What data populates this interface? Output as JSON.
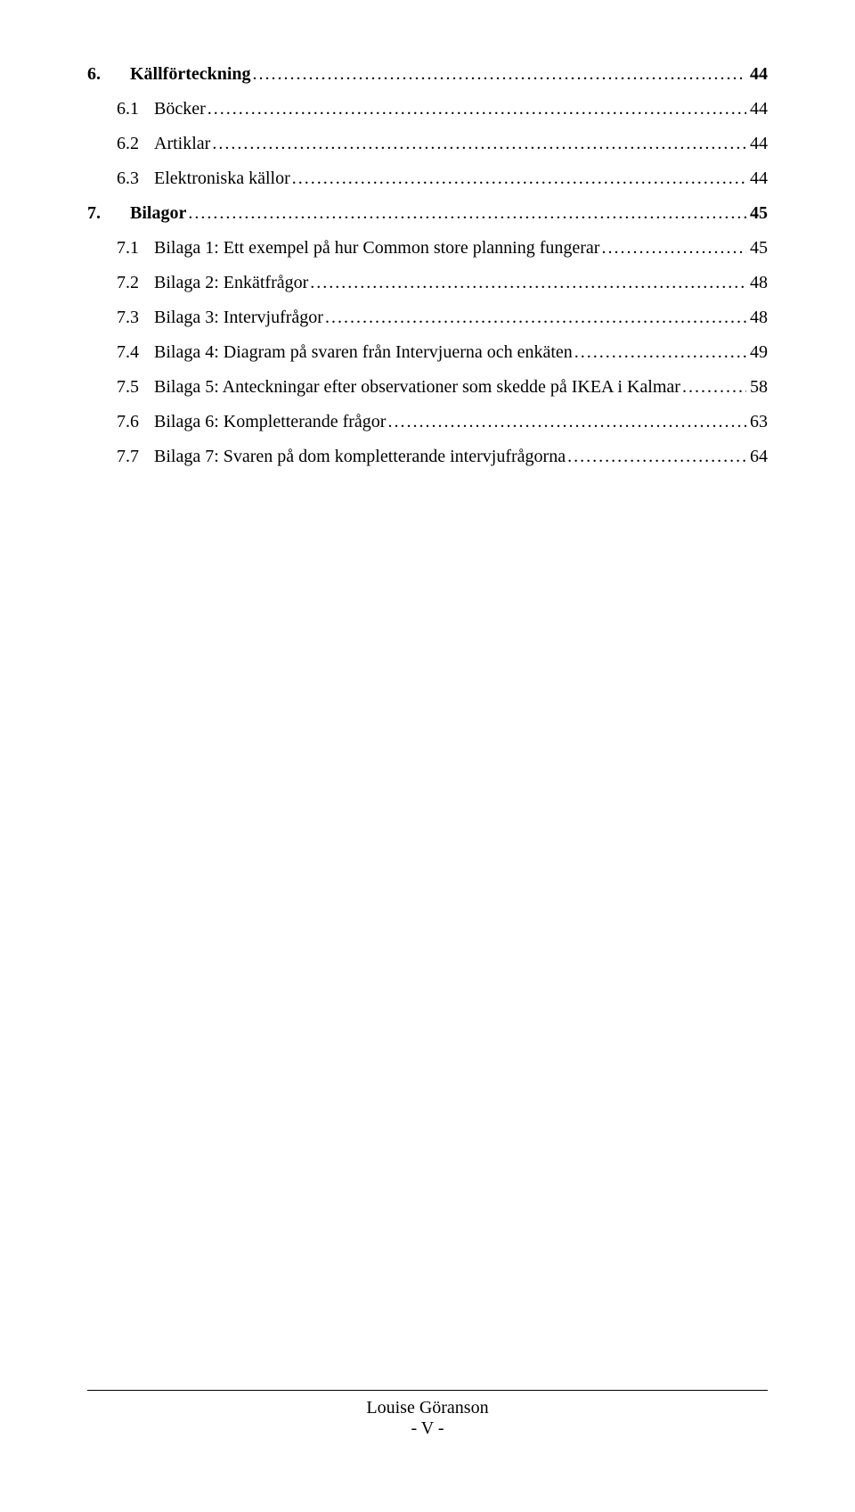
{
  "toc": [
    {
      "level": 1,
      "num": "6.",
      "title": "Källförteckning",
      "page": "44"
    },
    {
      "level": 2,
      "num": "6.1",
      "title": "Böcker",
      "page": "44"
    },
    {
      "level": 2,
      "num": "6.2",
      "title": "Artiklar",
      "page": "44"
    },
    {
      "level": 2,
      "num": "6.3",
      "title": "Elektroniska källor",
      "page": "44"
    },
    {
      "level": 1,
      "num": "7.",
      "title": "Bilagor",
      "page": "45"
    },
    {
      "level": 2,
      "num": "7.1",
      "title": "Bilaga 1: Ett exempel på hur Common store planning fungerar",
      "page": "45"
    },
    {
      "level": 2,
      "num": "7.2",
      "title": "Bilaga 2: Enkätfrågor",
      "page": "48"
    },
    {
      "level": 2,
      "num": "7.3",
      "title": "Bilaga 3: Intervjufrågor",
      "page": "48"
    },
    {
      "level": 2,
      "num": "7.4",
      "title": "Bilaga 4: Diagram på svaren från Intervjuerna och enkäten",
      "page": "49"
    },
    {
      "level": 2,
      "num": "7.5",
      "title": "Bilaga 5: Anteckningar efter observationer som skedde på IKEA i Kalmar",
      "page": "58"
    },
    {
      "level": 2,
      "num": "7.6",
      "title": "Bilaga 6: Kompletterande frågor",
      "page": "63"
    },
    {
      "level": 2,
      "num": "7.7",
      "title": "Bilaga 7: Svaren på dom kompletterande intervjufrågorna",
      "page": "64"
    }
  ],
  "footer": {
    "name": "Louise Göranson",
    "page": "- V -"
  }
}
